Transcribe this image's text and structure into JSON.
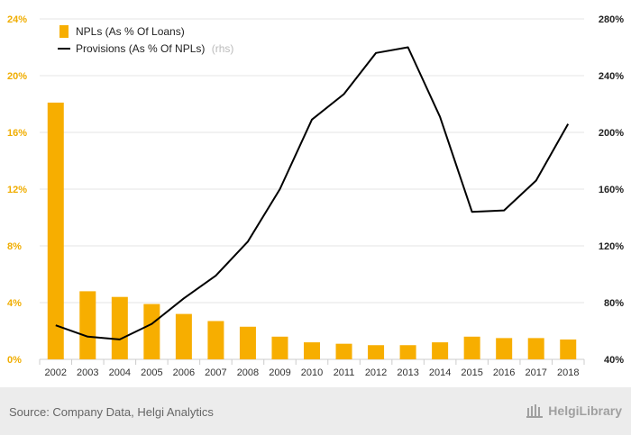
{
  "chart_data": {
    "type": "bar+line",
    "categories": [
      "2002",
      "2003",
      "2004",
      "2005",
      "2006",
      "2007",
      "2008",
      "2009",
      "2010",
      "2011",
      "2012",
      "2013",
      "2014",
      "2015",
      "2016",
      "2017",
      "2018"
    ],
    "series": [
      {
        "name": "NPLs (As % Of Loans)",
        "type": "bar",
        "axis": "left",
        "color": "#f7ae00",
        "values": [
          18.1,
          4.8,
          4.4,
          3.9,
          3.2,
          2.7,
          2.3,
          1.6,
          1.2,
          1.1,
          1.0,
          1.0,
          1.2,
          1.6,
          1.5,
          1.5,
          1.4
        ]
      },
      {
        "name": "Provisions (As % Of NPLs)",
        "name_suffix": "(rhs)",
        "type": "line",
        "axis": "right",
        "color": "#000000",
        "values": [
          64,
          56,
          54,
          65,
          83,
          99,
          123,
          160,
          209,
          227,
          256,
          260,
          211,
          144,
          145,
          166,
          206
        ]
      }
    ],
    "y_left": {
      "range": [
        0,
        24
      ],
      "ticks": [
        "0%",
        "4%",
        "8%",
        "12%",
        "16%",
        "20%",
        "24%"
      ],
      "tick_values": [
        0,
        4,
        8,
        12,
        16,
        20,
        24
      ]
    },
    "y_right": {
      "range": [
        40,
        280
      ],
      "ticks": [
        "40%",
        "80%",
        "120%",
        "160%",
        "200%",
        "240%",
        "280%"
      ],
      "tick_values": [
        40,
        80,
        120,
        160,
        200,
        240,
        280
      ]
    },
    "grid": true,
    "legend_position": "top-left"
  },
  "footer": {
    "source": "Source: Company Data, Helgi Analytics",
    "logo_text": "HelgiLibrary",
    "logo_icon": "library-building-icon"
  }
}
